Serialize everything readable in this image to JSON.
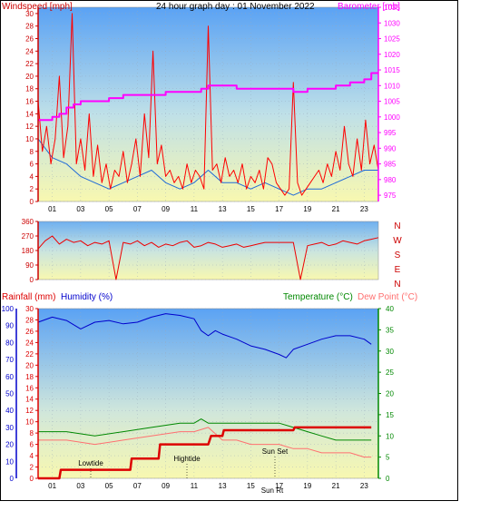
{
  "header": {
    "title": "24 hour graph day : 01 November 2022",
    "left_label": "Windspeed [mph]",
    "right_label": "Barometer [mb]"
  },
  "colors": {
    "wind": "#ff0000",
    "gust_avg": "#1e6ad8",
    "barometer": "#ff00ff",
    "direction": "#ee0000",
    "rainfall": "#dd0000",
    "humidity": "#0000cc",
    "temperature": "#008800",
    "dewpoint": "#ff7070",
    "left_axis": "#cc0000",
    "bottom_left_axis": "#0000cc",
    "bottom_right_axis": "#008800"
  },
  "chart_data": [
    {
      "type": "line",
      "name_key": "wind_baro",
      "x_ticks": [
        "01",
        "03",
        "05",
        "07",
        "09",
        "11",
        "13",
        "15",
        "17",
        "19",
        "21",
        "23"
      ],
      "x_range": [
        0,
        24
      ],
      "left_axis": {
        "label": "Windspeed [mph]",
        "range": [
          0,
          31
        ],
        "ticks": [
          0,
          2,
          4,
          6,
          8,
          10,
          12,
          14,
          16,
          18,
          20,
          22,
          24,
          26,
          28,
          30
        ]
      },
      "right_axis": {
        "label": "Barometer [mb]",
        "range": [
          973,
          1035
        ],
        "ticks": [
          975,
          980,
          985,
          990,
          995,
          1000,
          1005,
          1010,
          1015,
          1020,
          1025,
          1030,
          1035
        ]
      },
      "series": [
        {
          "name": "Wind",
          "x": [
            0.0,
            0.3,
            0.6,
            0.9,
            1.2,
            1.5,
            1.8,
            2.1,
            2.4,
            2.7,
            3.0,
            3.3,
            3.6,
            3.9,
            4.2,
            4.5,
            4.8,
            5.1,
            5.4,
            5.7,
            6.0,
            6.3,
            6.6,
            6.9,
            7.2,
            7.5,
            7.8,
            8.1,
            8.4,
            8.7,
            9.0,
            9.3,
            9.6,
            9.9,
            10.2,
            10.5,
            10.8,
            11.1,
            11.4,
            11.7,
            12.0,
            12.3,
            12.6,
            12.9,
            13.2,
            13.5,
            13.8,
            14.1,
            14.4,
            14.7,
            15.0,
            15.3,
            15.6,
            15.9,
            16.2,
            16.5,
            16.8,
            17.1,
            17.4,
            17.7,
            18.0,
            18.3,
            18.6,
            18.9,
            19.2,
            19.5,
            19.8,
            20.1,
            20.4,
            20.7,
            21.0,
            21.3,
            21.6,
            21.9,
            22.2,
            22.5,
            22.8,
            23.1,
            23.4,
            23.7,
            24.0
          ],
          "values": [
            16,
            8,
            12,
            6,
            10,
            20,
            7,
            12,
            30,
            6,
            10,
            5,
            14,
            4,
            9,
            3,
            6,
            2,
            5,
            4,
            8,
            3,
            6,
            10,
            4,
            14,
            7,
            24,
            6,
            9,
            4,
            5,
            3,
            4,
            2,
            6,
            3,
            5,
            4,
            2,
            28,
            5,
            6,
            3,
            7,
            4,
            5,
            3,
            6,
            2,
            4,
            3,
            5,
            2,
            7,
            6,
            3,
            2,
            1,
            2,
            19,
            3,
            1,
            2,
            3,
            4,
            5,
            3,
            6,
            4,
            8,
            5,
            12,
            6,
            4,
            10,
            5,
            13,
            6,
            9,
            5
          ]
        },
        {
          "name": "Average",
          "x": [
            0.0,
            1.0,
            2.0,
            3.0,
            4.0,
            5.0,
            6.0,
            7.0,
            8.0,
            9.0,
            10.0,
            11.0,
            12.0,
            13.0,
            14.0,
            15.0,
            16.0,
            17.0,
            18.0,
            19.0,
            20.0,
            21.0,
            22.0,
            23.0,
            24.0
          ],
          "values": [
            10,
            7,
            6,
            4,
            3,
            2,
            3,
            4,
            5,
            3,
            2,
            3,
            5,
            3,
            3,
            2,
            3,
            2,
            1,
            2,
            2,
            3,
            4,
            5,
            5
          ]
        },
        {
          "name": "Barometer",
          "x": [
            0.0,
            0.6,
            1.0,
            1.5,
            2.0,
            2.5,
            3.0,
            4.0,
            5.0,
            6.0,
            7.0,
            8.0,
            9.0,
            10.0,
            11.0,
            11.5,
            12.0,
            13.0,
            14.0,
            15.0,
            16.0,
            17.0,
            18.0,
            19.0,
            20.0,
            21.0,
            22.0,
            23.0,
            23.5,
            24.0
          ],
          "values": [
            999,
            999,
            1000,
            1001,
            1003,
            1004,
            1005,
            1005,
            1006,
            1007,
            1007,
            1007,
            1008,
            1008,
            1008,
            1009,
            1010,
            1010,
            1009,
            1009,
            1009,
            1009,
            1008,
            1009,
            1009,
            1010,
            1011,
            1012,
            1014,
            1014
          ]
        }
      ]
    },
    {
      "type": "line",
      "name_key": "direction",
      "right_labels": [
        "N",
        "W",
        "S",
        "E",
        "N"
      ],
      "left_axis": {
        "range": [
          0,
          360
        ],
        "ticks": [
          0,
          90,
          180,
          270,
          360
        ]
      },
      "series": [
        {
          "name": "Direction",
          "x": [
            0.0,
            0.5,
            1.0,
            1.5,
            2.0,
            2.5,
            3.0,
            3.5,
            4.0,
            4.5,
            5.0,
            5.5,
            6.0,
            6.5,
            7.0,
            7.5,
            8.0,
            8.5,
            9.0,
            9.5,
            10.0,
            10.5,
            11.0,
            11.5,
            12.0,
            12.5,
            13.0,
            13.5,
            14.0,
            14.5,
            15.0,
            15.5,
            16.0,
            16.5,
            17.0,
            17.5,
            18.0,
            18.5,
            19.0,
            19.5,
            20.0,
            20.5,
            21.0,
            21.5,
            22.0,
            22.5,
            23.0,
            23.5,
            24.0
          ],
          "values": [
            190,
            240,
            270,
            220,
            250,
            230,
            240,
            210,
            230,
            220,
            240,
            0,
            230,
            220,
            240,
            210,
            230,
            200,
            220,
            210,
            230,
            240,
            200,
            210,
            230,
            220,
            200,
            210,
            220,
            200,
            210,
            220,
            230,
            230,
            230,
            230,
            230,
            0,
            210,
            220,
            230,
            210,
            220,
            240,
            230,
            220,
            240,
            250,
            260
          ]
        }
      ]
    },
    {
      "type": "line",
      "name_key": "rain_hum_temp",
      "left_labels": {
        "rainfall": "Rainfall (mm)",
        "humidity": "Humidity (%)"
      },
      "right_labels": {
        "temperature": "Temperature (°C)",
        "dewpoint": "Dew Point (°C)"
      },
      "rain_axis": {
        "range": [
          0,
          30
        ],
        "ticks": [
          0,
          2,
          4,
          6,
          8,
          10,
          12,
          14,
          16,
          18,
          20,
          22,
          24,
          26,
          28,
          30
        ]
      },
      "humidity_axis": {
        "range": [
          0,
          100
        ],
        "ticks": [
          0,
          10,
          20,
          30,
          40,
          50,
          60,
          70,
          80,
          90,
          100
        ]
      },
      "temp_axis": {
        "range": [
          0,
          40
        ],
        "ticks": [
          0,
          5,
          10,
          15,
          20,
          25,
          30,
          35,
          40
        ]
      },
      "annotations": [
        "Lowtide",
        "Hightide",
        "Sun Set",
        "Sun Rt"
      ],
      "series": [
        {
          "name": "Rainfall",
          "x": [
            0,
            1.5,
            1.6,
            6.5,
            6.6,
            8.5,
            8.6,
            12.0,
            12.2,
            13.0,
            13.1,
            18.0,
            18.1,
            23.5
          ],
          "values": [
            0,
            0,
            1.5,
            1.5,
            3.5,
            3.5,
            6,
            6,
            7.5,
            7.5,
            8.5,
            8.5,
            9,
            9
          ]
        },
        {
          "name": "Humidity",
          "x": [
            0,
            1.0,
            2.0,
            3.0,
            4.0,
            5.0,
            6.0,
            7.0,
            8.0,
            9.0,
            10.0,
            11.0,
            11.5,
            12.0,
            12.5,
            13.0,
            14.0,
            15.0,
            16.0,
            17.0,
            17.5,
            18.0,
            19.0,
            20.0,
            21.0,
            22.0,
            23.0,
            23.5
          ],
          "values": [
            92,
            95,
            93,
            88,
            92,
            93,
            91,
            92,
            95,
            97,
            96,
            94,
            87,
            84,
            87,
            85,
            82,
            78,
            76,
            73,
            71,
            76,
            79,
            82,
            84,
            84,
            82,
            79
          ]
        },
        {
          "name": "Temperature",
          "x": [
            0,
            2,
            4,
            6,
            8,
            10,
            11,
            11.5,
            12,
            13,
            14,
            15,
            16,
            17,
            18,
            19,
            20,
            21,
            22,
            23,
            23.5
          ],
          "values": [
            11,
            11,
            10,
            11,
            12,
            13,
            13,
            14,
            13,
            13,
            13,
            13,
            13,
            13,
            12,
            11,
            10,
            9,
            9,
            9,
            9
          ]
        },
        {
          "name": "Dew Point",
          "x": [
            0,
            2,
            4,
            6,
            8,
            10,
            11,
            12,
            13,
            14,
            15,
            16,
            17,
            18,
            19,
            20,
            21,
            22,
            23,
            23.5
          ],
          "values": [
            9,
            9,
            8,
            9,
            10,
            11,
            11,
            12,
            9,
            9,
            8,
            8,
            8,
            7,
            7,
            6,
            6,
            6,
            5,
            5
          ]
        }
      ]
    }
  ]
}
